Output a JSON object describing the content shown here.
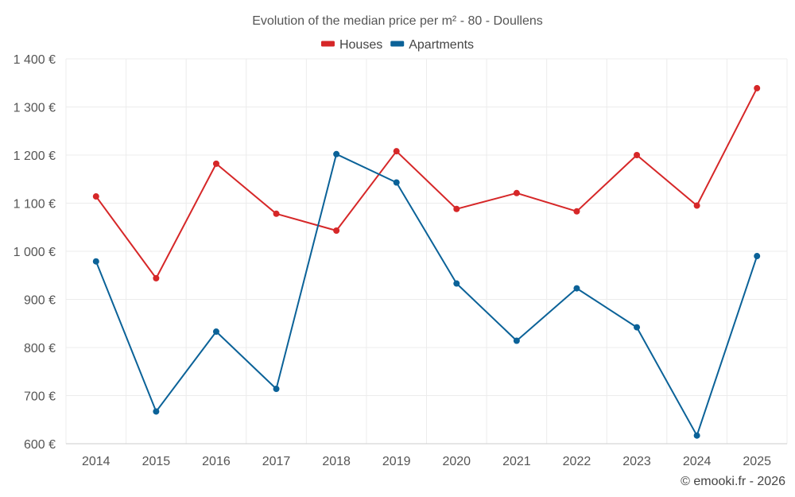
{
  "chart_data": {
    "type": "line",
    "title": "Evolution of the median price per m² - 80 - Doullens",
    "categories": [
      "2014",
      "2015",
      "2016",
      "2017",
      "2018",
      "2019",
      "2020",
      "2021",
      "2022",
      "2023",
      "2024",
      "2025"
    ],
    "series": [
      {
        "name": "Houses",
        "color": "#d62728",
        "values": [
          1114,
          944,
          1182,
          1078,
          1043,
          1208,
          1088,
          1121,
          1083,
          1200,
          1095,
          1339
        ]
      },
      {
        "name": "Apartments",
        "color": "#0b6298",
        "values": [
          979,
          667,
          833,
          714,
          1202,
          1143,
          933,
          814,
          923,
          842,
          617,
          990
        ]
      }
    ],
    "ylim": [
      600,
      1400
    ],
    "yticks": [
      1400,
      1300,
      1200,
      1100,
      1000,
      900,
      800,
      700,
      600
    ],
    "ytick_labels": [
      "1 400 €",
      "1 300 €",
      "1 200 €",
      "1 100 €",
      "1 000 €",
      "900 €",
      "800 €",
      "700 €",
      "600 €"
    ],
    "xlabel": "",
    "ylabel": "",
    "legend_position": "top-center",
    "grid": true
  },
  "credit": "© emooki.fr - 2026"
}
